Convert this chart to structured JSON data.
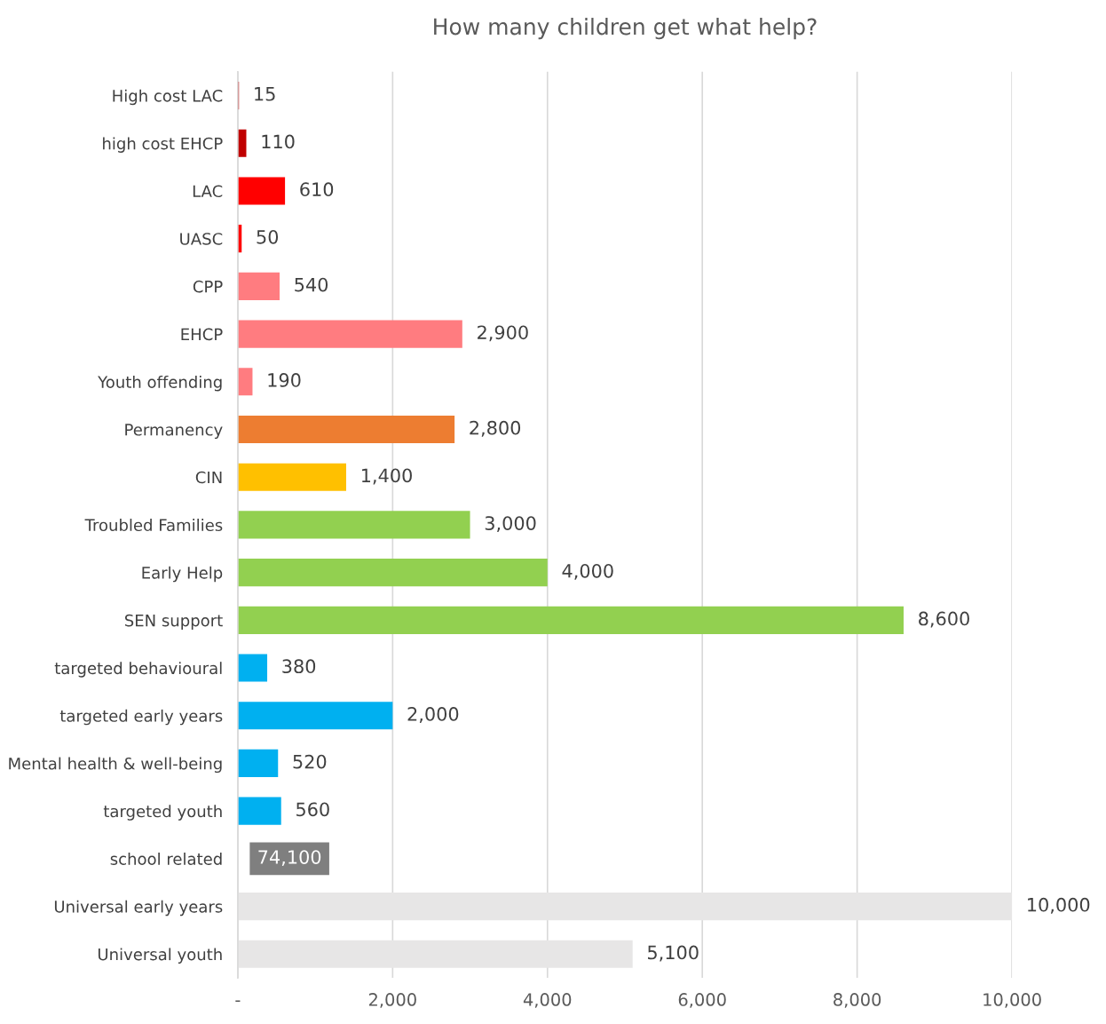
{
  "chart_data": {
    "type": "bar",
    "orientation": "horizontal",
    "title": "How many children get what help?",
    "categories": [
      "High cost LAC",
      "high cost EHCP",
      "LAC",
      "UASC",
      "CPP",
      "EHCP",
      "Youth offending",
      "Permanency",
      "CIN",
      "Troubled Families",
      "Early Help",
      "SEN support",
      "targeted behavioural",
      "targeted early years",
      "Mental health & well-being",
      "targeted youth",
      "school related",
      "Universal early years",
      "Universal youth"
    ],
    "values": [
      15,
      110,
      610,
      50,
      540,
      2900,
      190,
      2800,
      1400,
      3000,
      4000,
      8600,
      380,
      2000,
      520,
      560,
      null,
      10000,
      5100
    ],
    "colors": [
      "#c00000",
      "#c00000",
      "#ff0000",
      "#ff0000",
      "#ff7c80",
      "#ff7c80",
      "#ff7c80",
      "#ed7d31",
      "#ffc000",
      "#92d050",
      "#92d050",
      "#92d050",
      "#00b0f0",
      "#00b0f0",
      "#00b0f0",
      "#00b0f0",
      "#e7e6e6",
      "#e7e6e6",
      "#e7e6e6"
    ],
    "value_labels": [
      "15",
      "110",
      "610",
      "50",
      "540",
      "2,900",
      "190",
      "2,800",
      "1,400",
      "3,000",
      "4,000",
      "8,600",
      "380",
      "2,000",
      "520",
      "560",
      "74,100",
      "10,000",
      "5,100"
    ],
    "xlim": [
      0,
      10000
    ],
    "xticks": [
      {
        "value": 0,
        "label": "-"
      },
      {
        "value": 2000,
        "label": "2,000"
      },
      {
        "value": 4000,
        "label": "4,000"
      },
      {
        "value": 6000,
        "label": "6,000"
      },
      {
        "value": 8000,
        "label": "8,000"
      },
      {
        "value": 10000,
        "label": "10,000"
      }
    ],
    "grid": "x",
    "legend": false
  }
}
